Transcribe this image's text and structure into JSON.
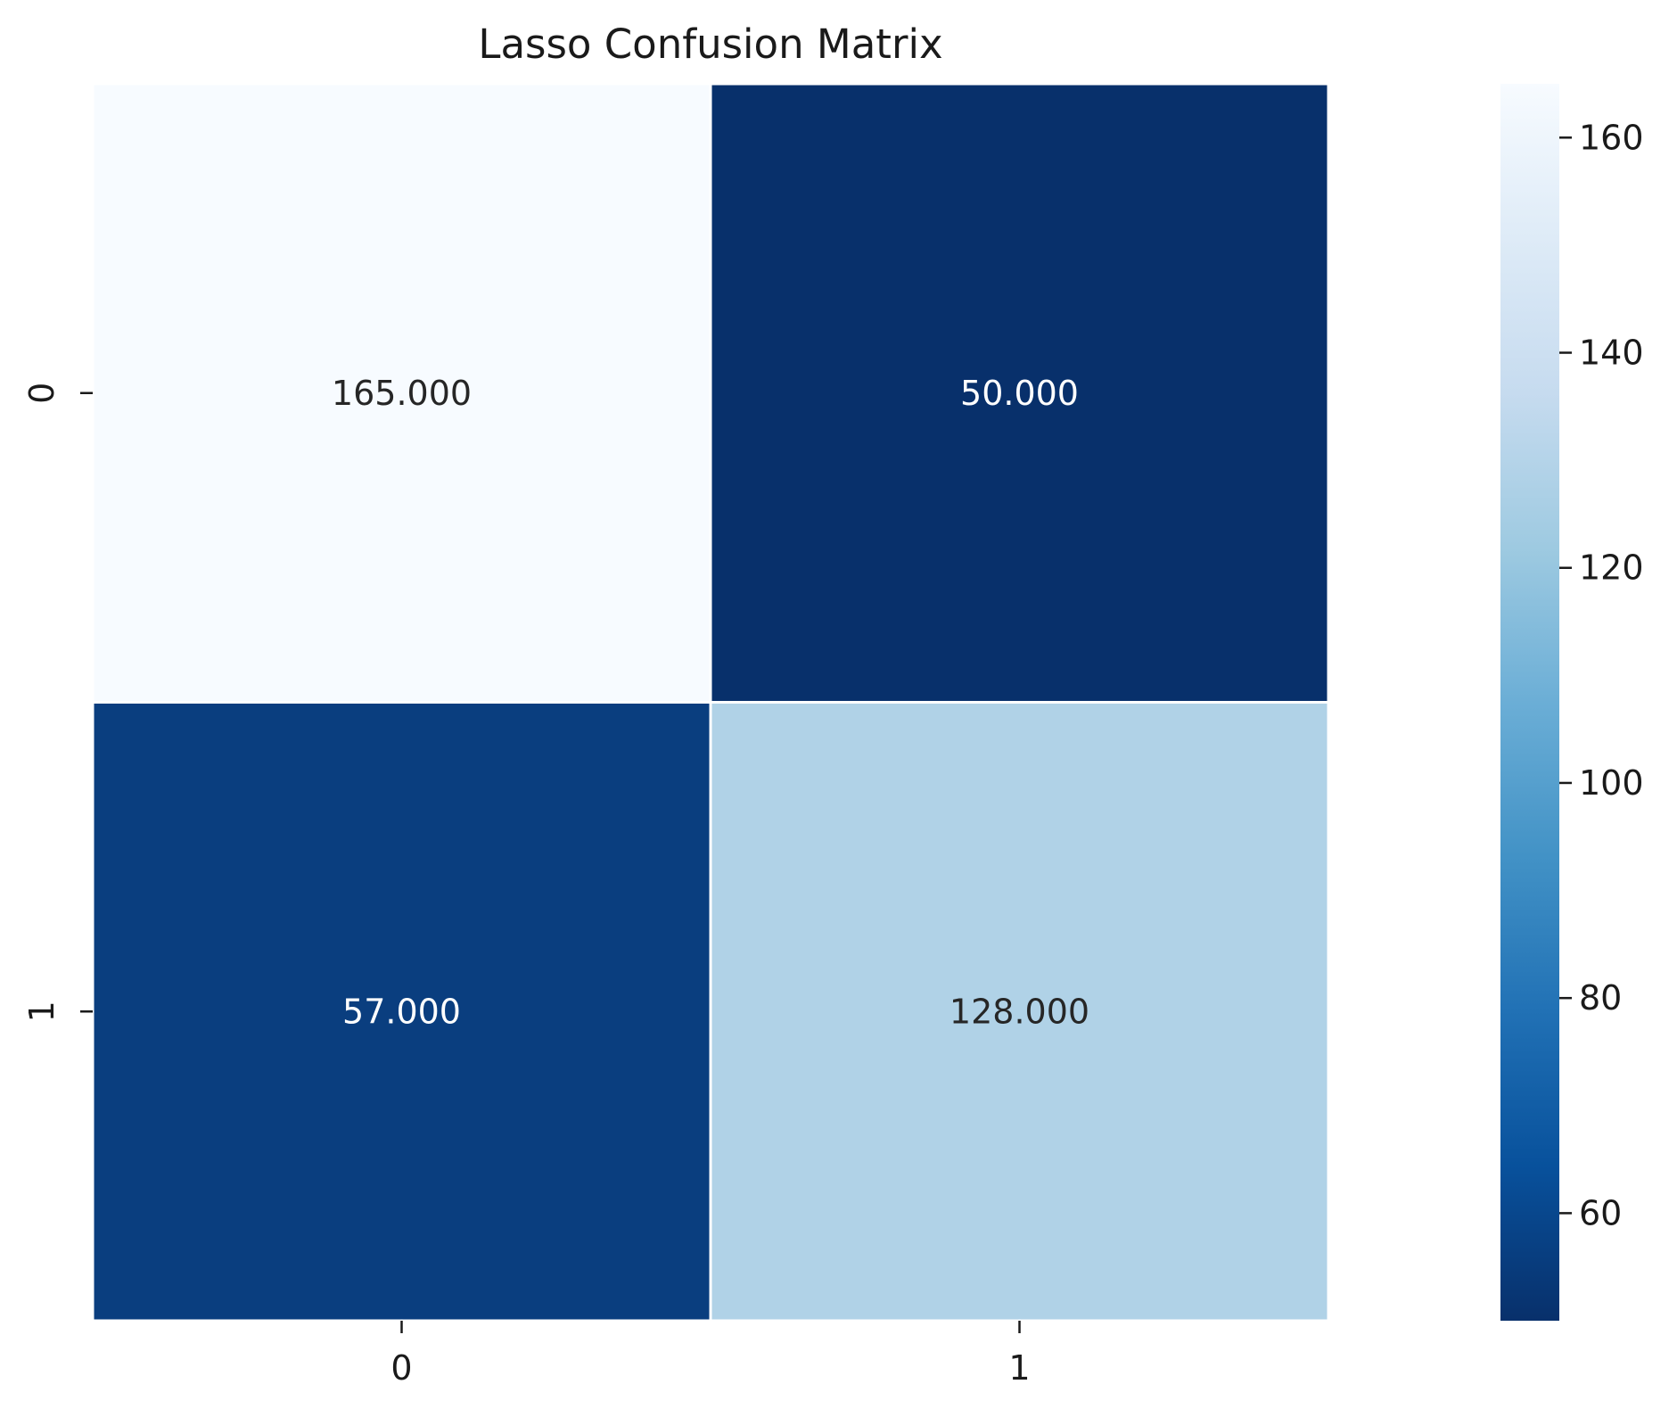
{
  "chart_data": {
    "type": "heatmap",
    "title": "Lasso Confusion Matrix",
    "xlabel": "",
    "ylabel": "",
    "x_categories": [
      "0",
      "1"
    ],
    "y_categories": [
      "0",
      "1"
    ],
    "values": [
      [
        165,
        50
      ],
      [
        57,
        128
      ]
    ],
    "cell_labels": [
      [
        "165.000",
        "50.000"
      ],
      [
        "57.000",
        "128.000"
      ]
    ],
    "colormap": "Blues",
    "colorbar": {
      "min": 50,
      "max": 165,
      "ticks": [
        60,
        80,
        100,
        120,
        140,
        160
      ],
      "tick_labels": [
        "60",
        "80",
        "100",
        "120",
        "140",
        "160"
      ]
    },
    "grid": false,
    "colors": {
      "cell_0_0": "#f7fbff",
      "cell_0_1": "#08306b",
      "cell_1_0": "#0a3e7f",
      "cell_1_1": "#b0d2e7",
      "cell_separator": "#ffffff",
      "dark_text": "#262626",
      "light_text": "#ffffff"
    }
  }
}
